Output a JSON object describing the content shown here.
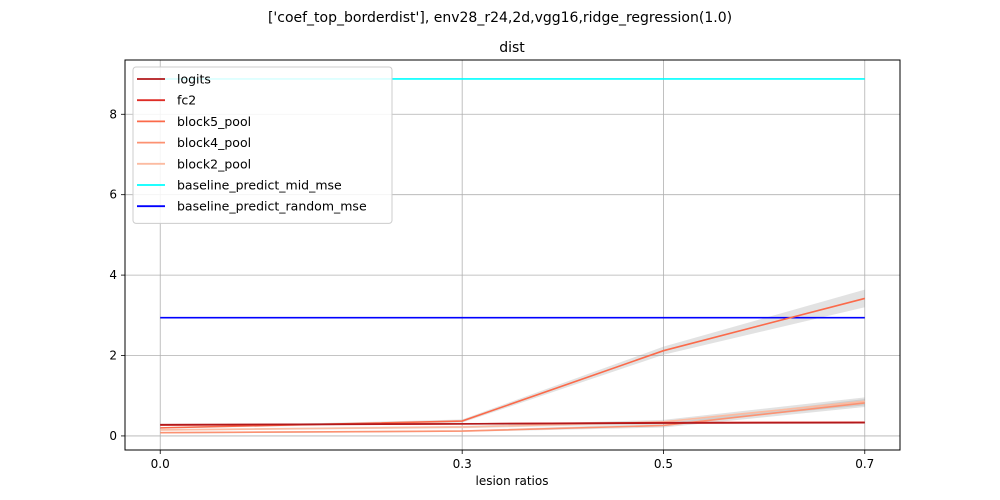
{
  "figure": {
    "suptitle": "['coef_top_borderdist'], env28_r24,2d,vgg16,ridge_regression(1.0)"
  },
  "chart_data": {
    "type": "line",
    "title": "dist",
    "xlabel": "lesion ratios",
    "ylabel": "",
    "x": [
      0.0,
      0.3,
      0.5,
      0.7
    ],
    "xticks": [
      "0.0",
      "0.3",
      "0.5",
      "0.7"
    ],
    "xlim": [
      -0.035,
      0.735
    ],
    "ylim": [
      -0.35,
      9.35
    ],
    "yticks": [
      0,
      2,
      4,
      6,
      8
    ],
    "grid": true,
    "legend_position": "top-left",
    "series": [
      {
        "name": "logits",
        "color": "#b2181b",
        "values": [
          0.28,
          0.3,
          0.32,
          0.33
        ],
        "band": [
          0.02,
          0.02,
          0.02,
          0.02
        ]
      },
      {
        "name": "fc2",
        "color": "#de2d26",
        "values": [
          0.27,
          0.3,
          0.33,
          0.34
        ],
        "band": [
          0.02,
          0.02,
          0.02,
          0.02
        ]
      },
      {
        "name": "block5_pool",
        "color": "#fb6a4a",
        "values": [
          0.2,
          0.37,
          2.12,
          3.42
        ],
        "band": [
          0.02,
          0.04,
          0.1,
          0.22
        ]
      },
      {
        "name": "block4_pool",
        "color": "#fc9272",
        "values": [
          0.08,
          0.12,
          0.26,
          0.82
        ],
        "band": [
          0.02,
          0.02,
          0.05,
          0.1
        ]
      },
      {
        "name": "block2_pool",
        "color": "#fcbba1",
        "values": [
          0.15,
          0.22,
          0.35,
          0.86
        ],
        "band": [
          0.02,
          0.03,
          0.05,
          0.1
        ]
      },
      {
        "name": "baseline_predict_mid_mse",
        "color": "#00ffff",
        "values": [
          8.88,
          8.88,
          8.88,
          8.88
        ],
        "band": [
          0,
          0,
          0,
          0
        ]
      },
      {
        "name": "baseline_predict_random_mse",
        "color": "#0000ff",
        "values": [
          2.94,
          2.94,
          2.94,
          2.94
        ],
        "band": [
          0,
          0,
          0,
          0
        ]
      }
    ]
  }
}
